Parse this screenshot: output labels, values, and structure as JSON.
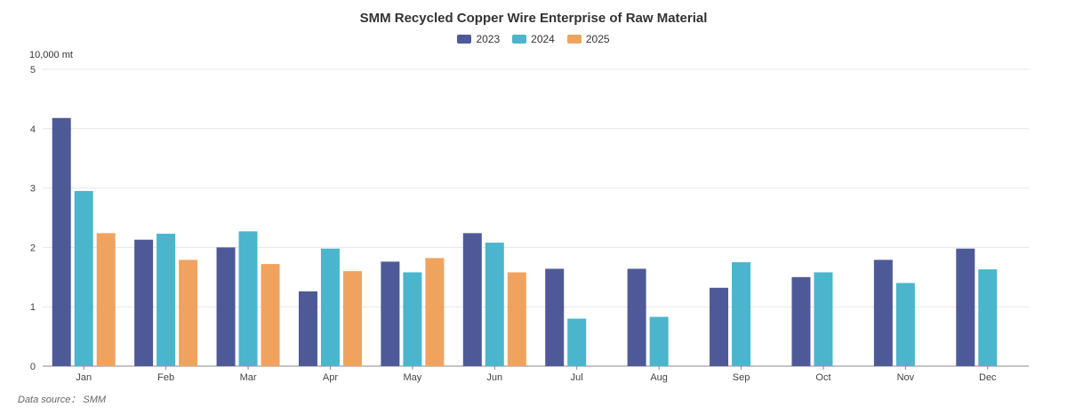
{
  "chart_data": {
    "type": "bar",
    "title": "SMM Recycled Copper Wire Enterprise of Raw Material",
    "unit_label": "10,000 mt",
    "source": "Data source： SMM",
    "categories": [
      "Jan",
      "Feb",
      "Mar",
      "Apr",
      "May",
      "Jun",
      "Jul",
      "Aug",
      "Sep",
      "Oct",
      "Nov",
      "Dec"
    ],
    "ylim": [
      0,
      5
    ],
    "yticks": [
      0,
      1,
      2,
      3,
      4,
      5
    ],
    "series": [
      {
        "name": "2023",
        "color": "#4e5a97",
        "values": [
          4.18,
          2.13,
          2.0,
          1.26,
          1.76,
          2.24,
          1.64,
          1.64,
          1.32,
          1.5,
          1.79,
          1.98
        ]
      },
      {
        "name": "2024",
        "color": "#4ab5cc",
        "values": [
          2.95,
          2.23,
          2.27,
          1.98,
          1.58,
          2.08,
          0.8,
          0.83,
          1.75,
          1.58,
          1.4,
          1.63
        ]
      },
      {
        "name": "2025",
        "color": "#f0a35e",
        "values": [
          2.24,
          1.79,
          1.72,
          1.6,
          1.82,
          1.58,
          null,
          null,
          null,
          null,
          null,
          null
        ]
      }
    ]
  }
}
